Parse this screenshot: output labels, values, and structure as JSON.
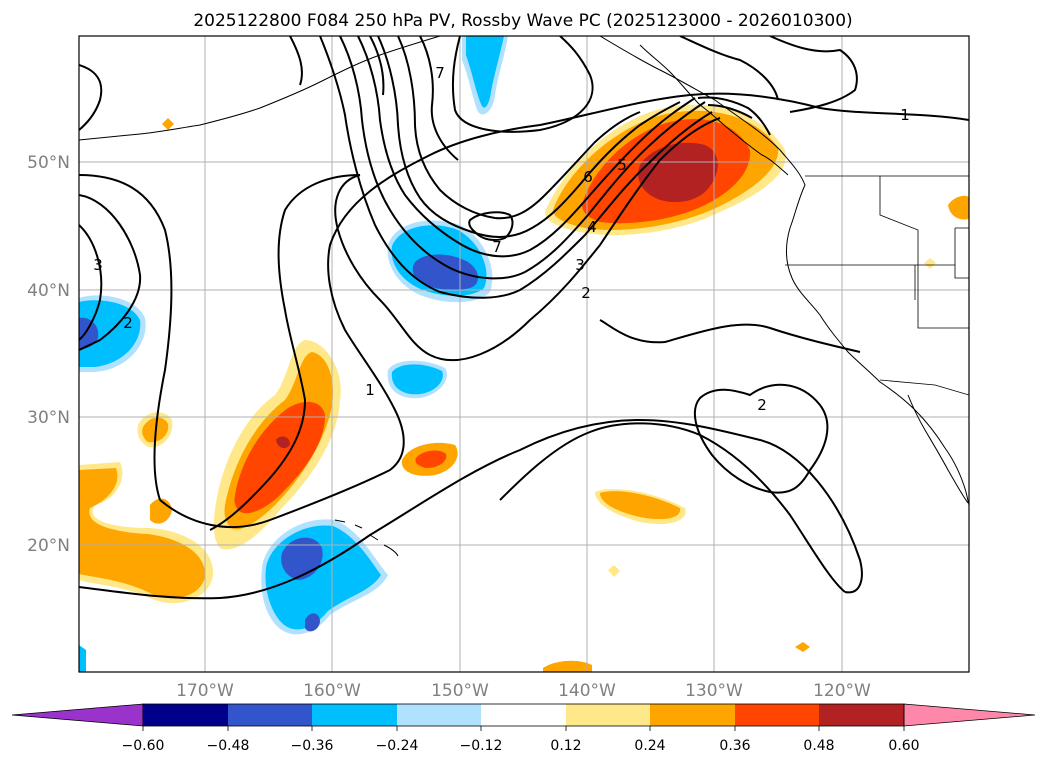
{
  "title": "2025122800 F084 250 hPa PV, Rossby Wave PC (2025123000 - 2026010300)",
  "map": {
    "lat_labels": [
      "50°N",
      "40°N",
      "30°N",
      "20°N"
    ],
    "lon_labels": [
      "170°W",
      "160°W",
      "150°W",
      "140°W",
      "130°W",
      "120°W"
    ],
    "contour_labels": [
      "1",
      "1",
      "2",
      "2",
      "2",
      "3",
      "3",
      "4",
      "5",
      "6",
      "7",
      "7"
    ]
  },
  "colorbar": {
    "tick_labels": [
      "−0.60",
      "−0.48",
      "−0.36",
      "−0.24",
      "−0.12",
      "0.12",
      "0.24",
      "0.36",
      "0.48",
      "0.60"
    ],
    "colors": [
      "#9933cc",
      "#00008b",
      "#3355cc",
      "#00bfff",
      "#b0e2ff",
      "#ffffff",
      "#ffe88a",
      "#ffa500",
      "#ff4500",
      "#b22222",
      "#ff88aa"
    ]
  }
}
